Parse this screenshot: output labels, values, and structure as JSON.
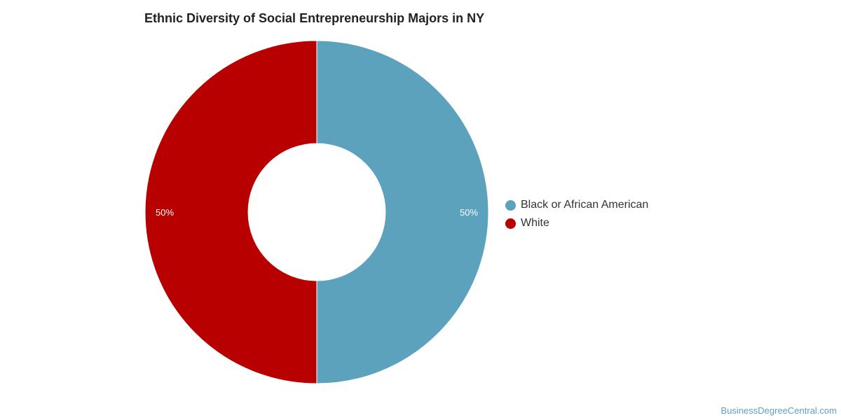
{
  "chart_data": {
    "type": "pie",
    "title": "Ethnic Diversity of Social Entrepreneurship Majors in NY",
    "donut": true,
    "legend_position": "right",
    "slices": [
      {
        "label": "Black or African American",
        "value": 50,
        "display": "50%",
        "color": "#5ca2bd"
      },
      {
        "label": "White",
        "value": 50,
        "display": "50%",
        "color": "#b80000"
      }
    ]
  },
  "watermark": "BusinessDegreeCentral.com"
}
